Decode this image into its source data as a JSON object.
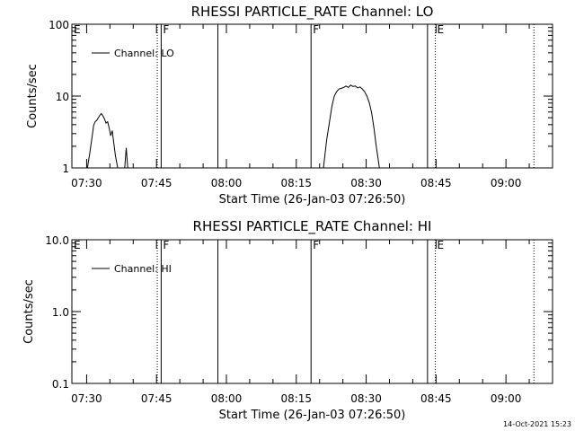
{
  "footer": {
    "timestamp": "14-Oct-2021 15:23"
  },
  "chart_data": [
    {
      "type": "line",
      "title": "RHESSI PARTICLE_RATE Channel: LO",
      "xlabel": "Start Time (26-Jan-03 07:26:50)",
      "ylabel": "Counts/sec",
      "yscale": "log",
      "xlim": [
        "07:26:50",
        "09:10:00"
      ],
      "ylim": [
        1,
        100
      ],
      "x_ticks": [
        "07:30",
        "07:45",
        "08:00",
        "08:15",
        "08:30",
        "08:45",
        "09:00"
      ],
      "y_ticks": [
        "1",
        "10",
        "100"
      ],
      "legend": {
        "position": "top-left",
        "entries": [
          "Channel: LO"
        ]
      },
      "series": [
        {
          "name": "Channel: LO",
          "color": "#000000",
          "segments": [
            {
              "x": [
                "07:30:10",
                "07:30:40",
                "07:31:10",
                "07:31:30",
                "07:31:50",
                "07:32:10",
                "07:32:30",
                "07:32:50",
                "07:33:10",
                "07:33:30",
                "07:33:50",
                "07:34:10",
                "07:34:30",
                "07:34:50",
                "07:35:10",
                "07:35:30",
                "07:35:50",
                "07:36:10",
                "07:36:40"
              ],
              "y": [
                1.0,
                1.6,
                2.7,
                3.9,
                4.4,
                4.6,
                5.0,
                5.4,
                5.7,
                5.3,
                4.8,
                4.2,
                4.4,
                3.6,
                2.8,
                3.3,
                2.2,
                1.5,
                1.0
              ]
            },
            {
              "x": [
                "07:38:10",
                "07:38:30",
                "07:38:50"
              ],
              "y": [
                1.0,
                1.9,
                1.0
              ]
            },
            {
              "x": [
                "08:20:50",
                "08:21:30",
                "08:22:10",
                "08:22:40",
                "08:23:10",
                "08:23:40",
                "08:24:10",
                "08:24:40",
                "08:25:10",
                "08:25:40",
                "08:26:10",
                "08:26:40",
                "08:27:10",
                "08:27:40",
                "08:28:10",
                "08:28:40",
                "08:29:10",
                "08:29:40",
                "08:30:10",
                "08:30:40",
                "08:31:10",
                "08:31:40",
                "08:32:10",
                "08:32:50"
              ],
              "y": [
                1.0,
                2.4,
                4.5,
                7.3,
                10.0,
                11.5,
                12.5,
                12.8,
                13.2,
                13.8,
                13.2,
                14.2,
                13.6,
                13.8,
                13.0,
                13.4,
                12.6,
                11.5,
                10.0,
                8.1,
                5.9,
                3.6,
                2.0,
                1.0
              ]
            }
          ]
        }
      ],
      "annotations": [
        {
          "label": "E",
          "time": "07:26:50",
          "style": "solid"
        },
        {
          "label": "F",
          "time": "07:46:00",
          "style": "solid"
        },
        {
          "label": "",
          "time": "07:45:10",
          "style": "dotted"
        },
        {
          "label": "",
          "time": "07:58:10",
          "style": "solid"
        },
        {
          "label": "F",
          "time": "08:18:10",
          "style": "solid"
        },
        {
          "label": "",
          "time": "08:43:10",
          "style": "solid"
        },
        {
          "label": "E",
          "time": "08:44:50",
          "style": "dotted"
        },
        {
          "label": "",
          "time": "09:06:00",
          "style": "dotted"
        }
      ]
    },
    {
      "type": "line",
      "title": "RHESSI PARTICLE_RATE Channel: HI",
      "xlabel": "Start Time (26-Jan-03 07:26:50)",
      "ylabel": "Counts/sec",
      "yscale": "log",
      "xlim": [
        "07:26:50",
        "09:10:00"
      ],
      "ylim": [
        0.1,
        10
      ],
      "x_ticks": [
        "07:30",
        "07:45",
        "08:00",
        "08:15",
        "08:30",
        "08:45",
        "09:00"
      ],
      "y_ticks": [
        "0.1",
        "1.0",
        "10.0"
      ],
      "legend": {
        "position": "top-left",
        "entries": [
          "Channel: HI"
        ]
      },
      "series": [
        {
          "name": "Channel: HI",
          "color": "#000000",
          "segments": []
        }
      ],
      "annotations": [
        {
          "label": "E",
          "time": "07:26:50",
          "style": "solid"
        },
        {
          "label": "F",
          "time": "07:46:00",
          "style": "solid"
        },
        {
          "label": "",
          "time": "07:45:10",
          "style": "dotted"
        },
        {
          "label": "",
          "time": "07:58:10",
          "style": "solid"
        },
        {
          "label": "F",
          "time": "08:18:10",
          "style": "solid"
        },
        {
          "label": "",
          "time": "08:43:10",
          "style": "solid"
        },
        {
          "label": "E",
          "time": "08:44:50",
          "style": "dotted"
        },
        {
          "label": "",
          "time": "09:06:00",
          "style": "dotted"
        }
      ]
    }
  ]
}
